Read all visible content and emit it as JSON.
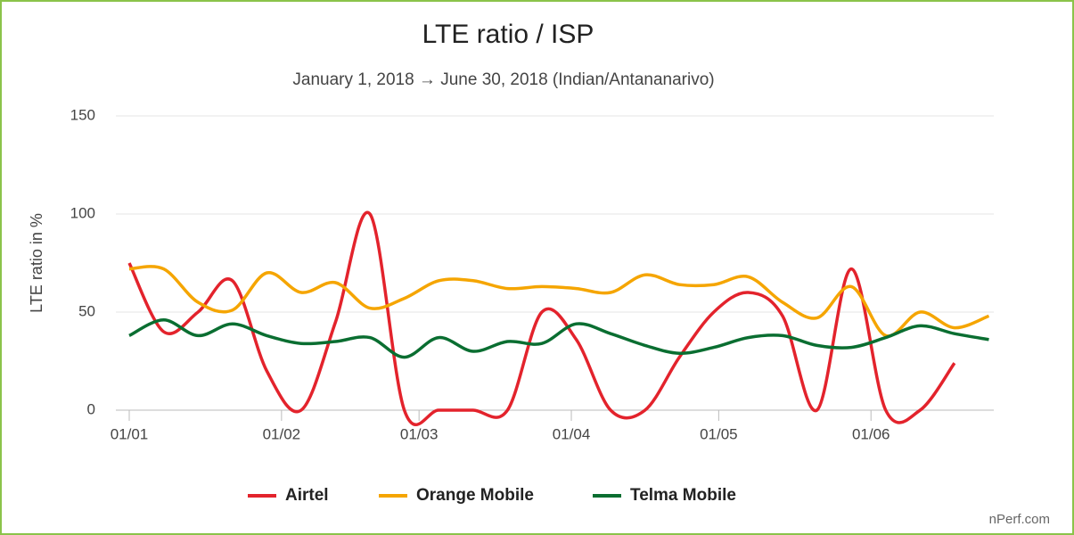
{
  "chart_data": {
    "type": "line",
    "title": "LTE ratio / ISP",
    "subtitle": "January 1, 2018 → June 30, 2018 (Indian/Antananarivo)",
    "y_label": "LTE ratio in %",
    "credit": "nPerf.com",
    "x": [
      "01/01",
      "08/01",
      "15/01",
      "22/01",
      "29/01",
      "05/02",
      "12/02",
      "19/02",
      "26/02",
      "05/03",
      "12/03",
      "19/03",
      "26/03",
      "02/04",
      "09/04",
      "16/04",
      "23/04",
      "30/04",
      "07/05",
      "14/05",
      "21/05",
      "28/05",
      "04/06",
      "11/06",
      "18/06",
      "25/06"
    ],
    "xlim": [
      "01/01",
      "26/06"
    ],
    "xticks": [
      "01/01",
      "01/02",
      "01/03",
      "01/04",
      "01/05",
      "01/06"
    ],
    "ylim": [
      0,
      150
    ],
    "yticks": [
      0,
      50,
      100,
      150
    ],
    "grid": true,
    "legend": "bottom",
    "series": [
      {
        "name": "Airtel",
        "color": "#e3232c",
        "values": [
          75,
          40,
          50,
          66,
          20,
          0,
          45,
          100,
          0,
          0,
          0,
          0,
          50,
          36,
          0,
          0,
          27,
          50,
          60,
          48,
          0,
          72,
          0,
          0,
          24,
          null
        ]
      },
      {
        "name": "Orange Mobile",
        "color": "#f5a500",
        "values": [
          72,
          72,
          55,
          51,
          70,
          60,
          65,
          52,
          57,
          66,
          66,
          62,
          63,
          62,
          60,
          69,
          64,
          64,
          68,
          55,
          47,
          63,
          38,
          50,
          42,
          48
        ]
      },
      {
        "name": "Telma Mobile",
        "color": "#0a6e31",
        "values": [
          38,
          46,
          38,
          44,
          38,
          34,
          35,
          37,
          27,
          37,
          30,
          35,
          34,
          44,
          39,
          33,
          29,
          32,
          37,
          38,
          33,
          32,
          37,
          43,
          39,
          36
        ]
      }
    ]
  }
}
